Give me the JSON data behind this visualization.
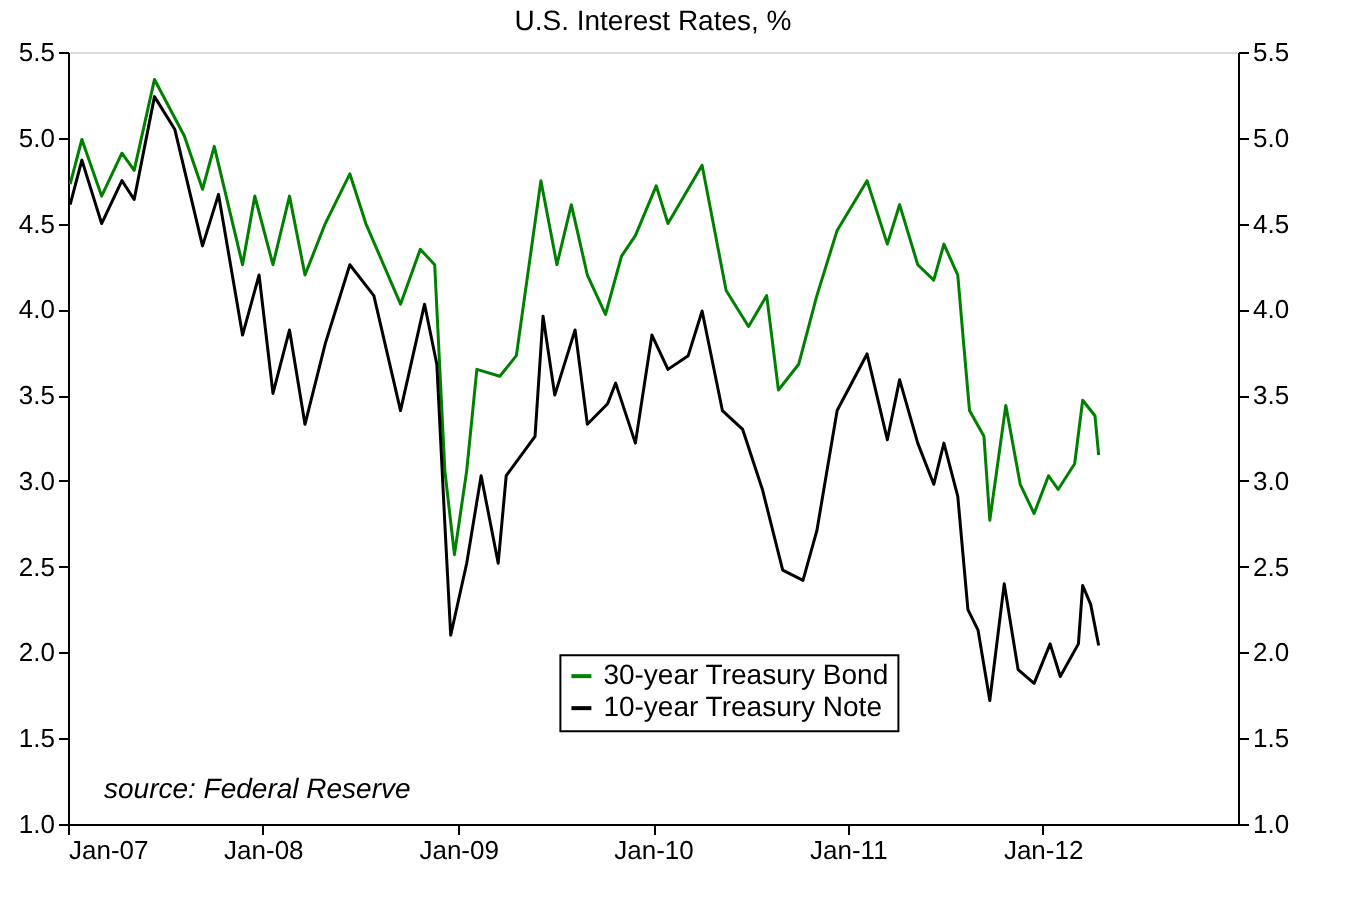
{
  "chart_data": {
    "type": "line",
    "title": "U.S. Interest Rates, %",
    "annotations": [
      "source: Federal Reserve"
    ],
    "xlim": [
      "2007-01-01",
      "2013-01-01"
    ],
    "xticks": [
      {
        "value": "2007-01-01",
        "label": "Jan-07"
      },
      {
        "value": "2008-01-01",
        "label": "Jan-08"
      },
      {
        "value": "2009-01-01",
        "label": "Jan-09"
      },
      {
        "value": "2010-01-01",
        "label": "Jan-10"
      },
      {
        "value": "2011-01-01",
        "label": "Jan-11"
      },
      {
        "value": "2012-01-01",
        "label": "Jan-12"
      }
    ],
    "ylim": [
      1.0,
      5.5
    ],
    "yticks": [
      {
        "value": 1.0,
        "label": "1.0"
      },
      {
        "value": 1.5,
        "label": "1.5"
      },
      {
        "value": 2.0,
        "label": "2.0"
      },
      {
        "value": 2.5,
        "label": "2.5"
      },
      {
        "value": 3.0,
        "label": "3.0"
      },
      {
        "value": 3.5,
        "label": "3.5"
      },
      {
        "value": 4.0,
        "label": "4.0"
      },
      {
        "value": 4.5,
        "label": "4.5"
      },
      {
        "value": 5.0,
        "label": "5.0"
      },
      {
        "value": 5.5,
        "label": "5.5"
      }
    ],
    "y2lim": [
      1.0,
      5.5
    ],
    "y2ticks": [
      {
        "value": 1.0,
        "label": "1.0"
      },
      {
        "value": 1.5,
        "label": "1.5"
      },
      {
        "value": 2.0,
        "label": "2.0"
      },
      {
        "value": 2.5,
        "label": "2.5"
      },
      {
        "value": 3.0,
        "label": "3.0"
      },
      {
        "value": 3.5,
        "label": "3.5"
      },
      {
        "value": 4.0,
        "label": "4.0"
      },
      {
        "value": 4.5,
        "label": "4.5"
      },
      {
        "value": 5.0,
        "label": "5.0"
      },
      {
        "value": 5.5,
        "label": "5.5"
      }
    ],
    "grid": false,
    "legend": "bottom",
    "marker": "none",
    "line_style": "solid",
    "series": [
      {
        "name": "30-year Treasury Bond",
        "color": "#008000",
        "x": [
          "2007-01-05",
          "2007-01-27",
          "2007-03-05",
          "2007-04-12",
          "2007-05-05",
          "2007-06-12",
          "2007-08-07",
          "2007-09-10",
          "2007-10-02",
          "2007-11-24",
          "2007-12-17",
          "2008-01-20",
          "2008-02-20",
          "2008-03-20",
          "2008-04-27",
          "2008-06-12",
          "2008-07-12",
          "2008-09-15",
          "2008-10-22",
          "2008-11-18",
          "2008-12-07",
          "2008-12-25",
          "2009-01-17",
          "2009-02-05",
          "2009-03-20",
          "2009-04-20",
          "2009-06-05",
          "2009-07-05",
          "2009-08-01",
          "2009-08-31",
          "2009-10-04",
          "2009-11-03",
          "2009-11-29",
          "2010-01-07",
          "2010-01-29",
          "2010-04-03",
          "2010-05-18",
          "2010-06-29",
          "2010-08-02",
          "2010-08-24",
          "2010-10-01",
          "2010-11-04",
          "2010-12-12",
          "2011-02-06",
          "2011-03-16",
          "2011-04-08",
          "2011-05-12",
          "2011-06-11",
          "2011-06-30",
          "2011-07-26",
          "2011-08-06",
          "2011-08-17",
          "2011-09-13",
          "2011-09-24",
          "2011-10-24",
          "2011-11-20",
          "2011-12-16",
          "2012-01-12",
          "2012-01-30",
          "2012-03-01",
          "2012-03-16",
          "2012-04-08",
          "2012-04-15"
        ],
        "values": [
          4.73,
          4.99,
          4.66,
          4.91,
          4.81,
          5.34,
          5.01,
          4.7,
          4.95,
          4.26,
          4.66,
          4.26,
          4.66,
          4.2,
          4.5,
          4.79,
          4.5,
          4.03,
          4.35,
          4.26,
          3.06,
          2.57,
          3.06,
          3.65,
          3.61,
          3.73,
          4.75,
          4.26,
          4.61,
          4.2,
          3.97,
          4.31,
          4.43,
          4.72,
          4.5,
          4.84,
          4.11,
          3.9,
          4.08,
          3.53,
          3.68,
          4.08,
          4.46,
          4.75,
          4.38,
          4.61,
          4.26,
          4.17,
          4.38,
          4.2,
          3.8,
          3.41,
          3.26,
          2.77,
          3.44,
          2.98,
          2.81,
          3.03,
          2.95,
          3.1,
          3.47,
          3.38,
          3.15
        ]
      },
      {
        "name": "10-year Treasury Note",
        "color": "#000000",
        "x": [
          "2007-01-05",
          "2007-01-27",
          "2007-03-05",
          "2007-04-12",
          "2007-05-05",
          "2007-06-12",
          "2007-07-20",
          "2007-09-10",
          "2007-10-10",
          "2007-11-24",
          "2007-12-25",
          "2008-01-20",
          "2008-02-20",
          "2008-03-20",
          "2008-04-27",
          "2008-06-12",
          "2008-07-27",
          "2008-09-15",
          "2008-10-30",
          "2008-11-22",
          "2008-12-07",
          "2008-12-18",
          "2009-01-17",
          "2009-02-13",
          "2009-03-17",
          "2009-04-01",
          "2009-05-25",
          "2009-06-09",
          "2009-07-01",
          "2009-08-08",
          "2009-08-31",
          "2009-10-08",
          "2009-10-23",
          "2009-11-29",
          "2009-12-30",
          "2010-01-29",
          "2010-03-08",
          "2010-04-03",
          "2010-05-11",
          "2010-06-18",
          "2010-07-25",
          "2010-09-01",
          "2010-10-09",
          "2010-11-04",
          "2010-12-12",
          "2011-02-06",
          "2011-03-16",
          "2011-04-08",
          "2011-05-12",
          "2011-06-11",
          "2011-06-30",
          "2011-07-26",
          "2011-08-14",
          "2011-09-02",
          "2011-09-24",
          "2011-10-21",
          "2011-11-16",
          "2011-12-16",
          "2012-01-15",
          "2012-02-03",
          "2012-03-08",
          "2012-03-16",
          "2012-03-31",
          "2012-04-15"
        ],
        "values": [
          4.61,
          4.87,
          4.5,
          4.75,
          4.64,
          5.24,
          5.05,
          4.37,
          4.67,
          3.85,
          4.2,
          3.51,
          3.88,
          3.33,
          3.8,
          4.26,
          4.08,
          3.41,
          4.03,
          3.68,
          2.75,
          2.1,
          2.52,
          3.03,
          2.52,
          3.03,
          3.26,
          3.96,
          3.5,
          3.88,
          3.33,
          3.45,
          3.57,
          3.22,
          3.85,
          3.65,
          3.73,
          3.99,
          3.41,
          3.3,
          2.95,
          2.48,
          2.42,
          2.71,
          3.41,
          3.74,
          3.24,
          3.59,
          3.22,
          2.98,
          3.22,
          2.91,
          2.25,
          2.13,
          1.72,
          2.4,
          1.9,
          1.82,
          2.05,
          1.86,
          2.05,
          2.39,
          2.28,
          2.04
        ]
      }
    ]
  }
}
